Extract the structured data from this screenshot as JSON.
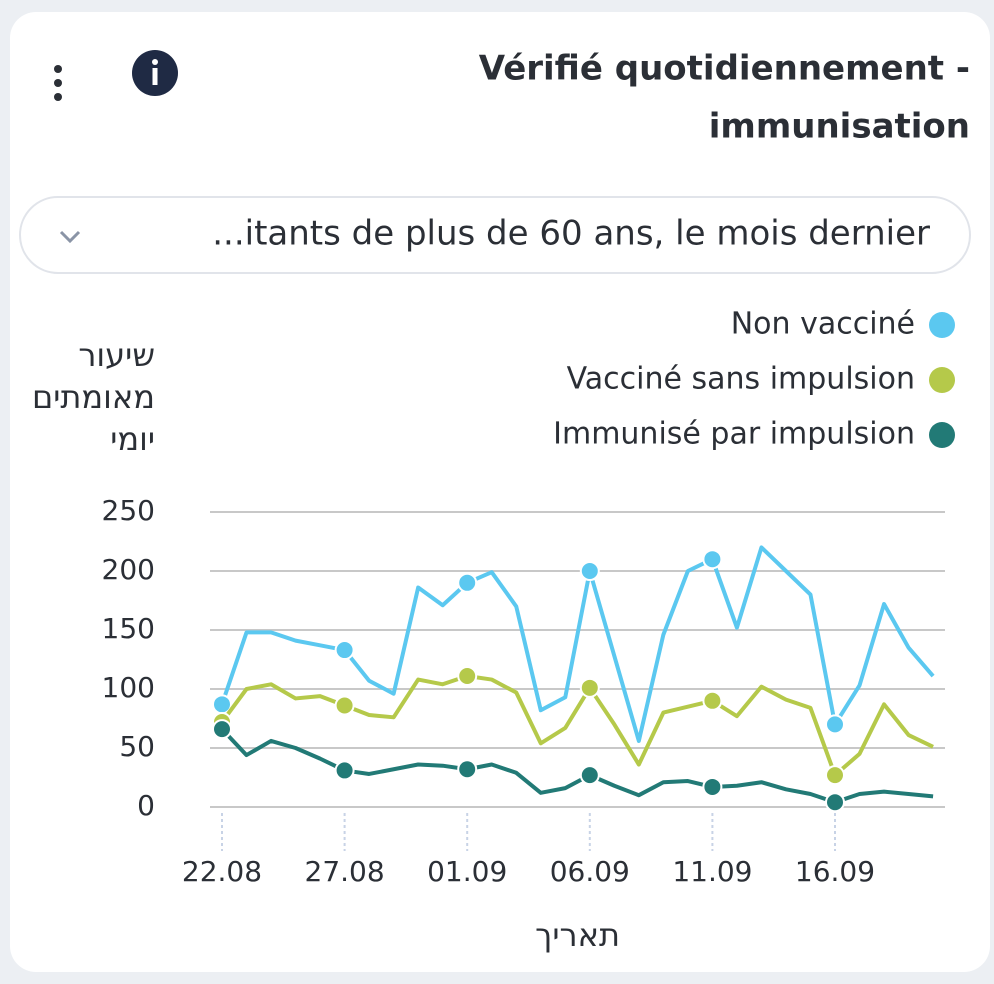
{
  "title": [
    "Vérifié quotidiennement -",
    "immunisation"
  ],
  "dropdown": "...itants de plus de 60 ans, le mois dernier",
  "chart_data": {
    "type": "line",
    "ylabel": [
      "שיעור",
      "מאומתים",
      "יומי"
    ],
    "xlabel": "תאריך",
    "categories": [
      "22.08",
      null,
      null,
      null,
      null,
      "27.08",
      null,
      null,
      null,
      null,
      "01.09",
      null,
      null,
      null,
      null,
      "06.09",
      null,
      null,
      null,
      null,
      "11.09",
      null,
      null,
      null,
      null,
      "16.09",
      null,
      null,
      null,
      null
    ],
    "series": [
      {
        "name": "Non vacciné",
        "color": "#5bc8f0",
        "values": [
          87,
          148,
          148,
          141,
          137,
          133,
          107,
          96,
          186,
          171,
          190,
          199,
          170,
          82,
          93,
          200,
          128,
          56,
          146,
          200,
          210,
          152,
          220,
          200,
          180,
          70,
          103,
          172,
          135,
          111
        ]
      },
      {
        "name": "Vacciné sans impulsion",
        "color": "#b5c94a",
        "values": [
          72,
          100,
          104,
          92,
          94,
          86,
          78,
          76,
          108,
          104,
          111,
          108,
          97,
          54,
          67,
          101,
          70,
          36,
          80,
          85,
          90,
          77,
          102,
          91,
          84,
          27,
          45,
          87,
          61,
          51
        ]
      },
      {
        "name": "Immunisé par impulsion",
        "color": "#227a76",
        "values": [
          66,
          44,
          56,
          50,
          41,
          31,
          28,
          32,
          36,
          35,
          32,
          36,
          29,
          12,
          16,
          27,
          18,
          10,
          21,
          22,
          17,
          18,
          21,
          15,
          11,
          4,
          11,
          13,
          11,
          9
        ]
      }
    ],
    "ylim": [
      0,
      250
    ],
    "yticks": [
      0,
      50,
      100,
      150,
      200,
      250
    ],
    "grid": true,
    "legend": "top-right"
  }
}
